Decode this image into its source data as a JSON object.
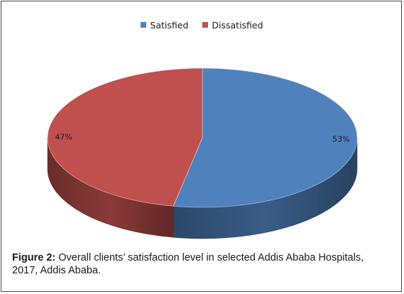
{
  "chart_data": {
    "type": "pie",
    "categories": [
      "Satisfied",
      "Dissatisfied"
    ],
    "values": [
      53,
      47
    ],
    "data_labels": [
      "53%",
      "47%"
    ],
    "colors": [
      "#4f81bd",
      "#c0504d"
    ],
    "three_d": true,
    "legend_position": "top"
  },
  "caption": {
    "label": "Figure 2:",
    "text": " Overall clients’ satisfaction level in selected Addis Ababa Hospitals, 2017, Addis Ababa."
  }
}
